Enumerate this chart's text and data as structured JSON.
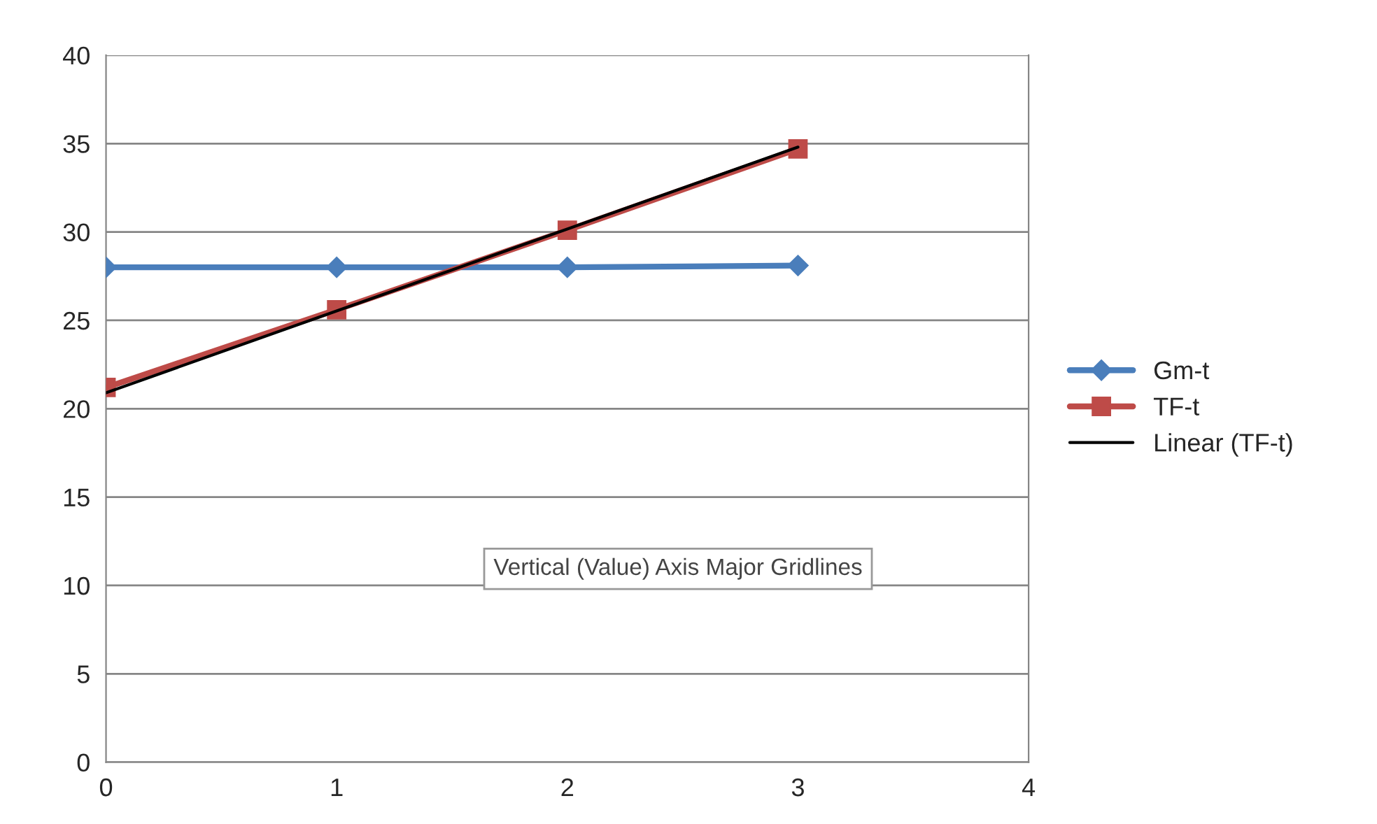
{
  "chart_data": {
    "type": "line",
    "x": [
      0,
      1,
      2,
      3
    ],
    "series": [
      {
        "name": "Gm-t",
        "color": "#4a7ebb",
        "values": [
          28.0,
          28.0,
          28.0,
          28.1
        ],
        "marker": "diamond",
        "line_style": "solid"
      },
      {
        "name": "TF-t",
        "color": "#be4b48",
        "values": [
          21.2,
          25.6,
          30.1,
          34.7
        ],
        "marker": "square",
        "line_style": "solid"
      },
      {
        "name": "Linear (TF-t)",
        "type": "line",
        "color": "#000000",
        "x": [
          0,
          3
        ],
        "values": [
          20.9,
          34.8
        ],
        "marker": "none",
        "line_style": "solid"
      }
    ],
    "xlim": [
      0,
      4
    ],
    "xticks": [
      0,
      1,
      2,
      3,
      4
    ],
    "ylim": [
      0,
      40
    ],
    "yticks": [
      0,
      5,
      10,
      15,
      20,
      25,
      30,
      35,
      40
    ],
    "grid": "y",
    "legend": "right",
    "annotations": [
      "Vertical (Value) Axis Major Gridlines"
    ]
  }
}
